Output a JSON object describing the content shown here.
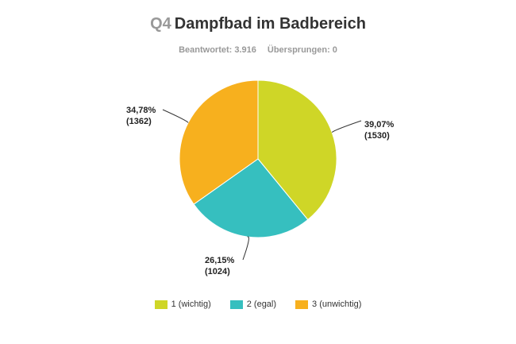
{
  "header": {
    "question_number": "Q4",
    "title": "Dampfbad im Badbereich",
    "answered": "Beantwortet: 3.916",
    "skipped": "Übersprungen: 0"
  },
  "chart_data": {
    "type": "pie",
    "slices": [
      {
        "label": "1 (wichtig)",
        "percent_label": "39,07%",
        "count_label": "(1530)",
        "value": 1530,
        "color": "#cfd627"
      },
      {
        "label": "2 (egal)",
        "percent_label": "26,15%",
        "count_label": "(1024)",
        "value": 1024,
        "color": "#36bfbf"
      },
      {
        "label": "3 (unwichtig)",
        "percent_label": "34,78%",
        "count_label": "(1362)",
        "value": 1362,
        "color": "#f7b01e"
      }
    ],
    "start": "top",
    "direction": "clockwise",
    "legend": "bottom"
  }
}
